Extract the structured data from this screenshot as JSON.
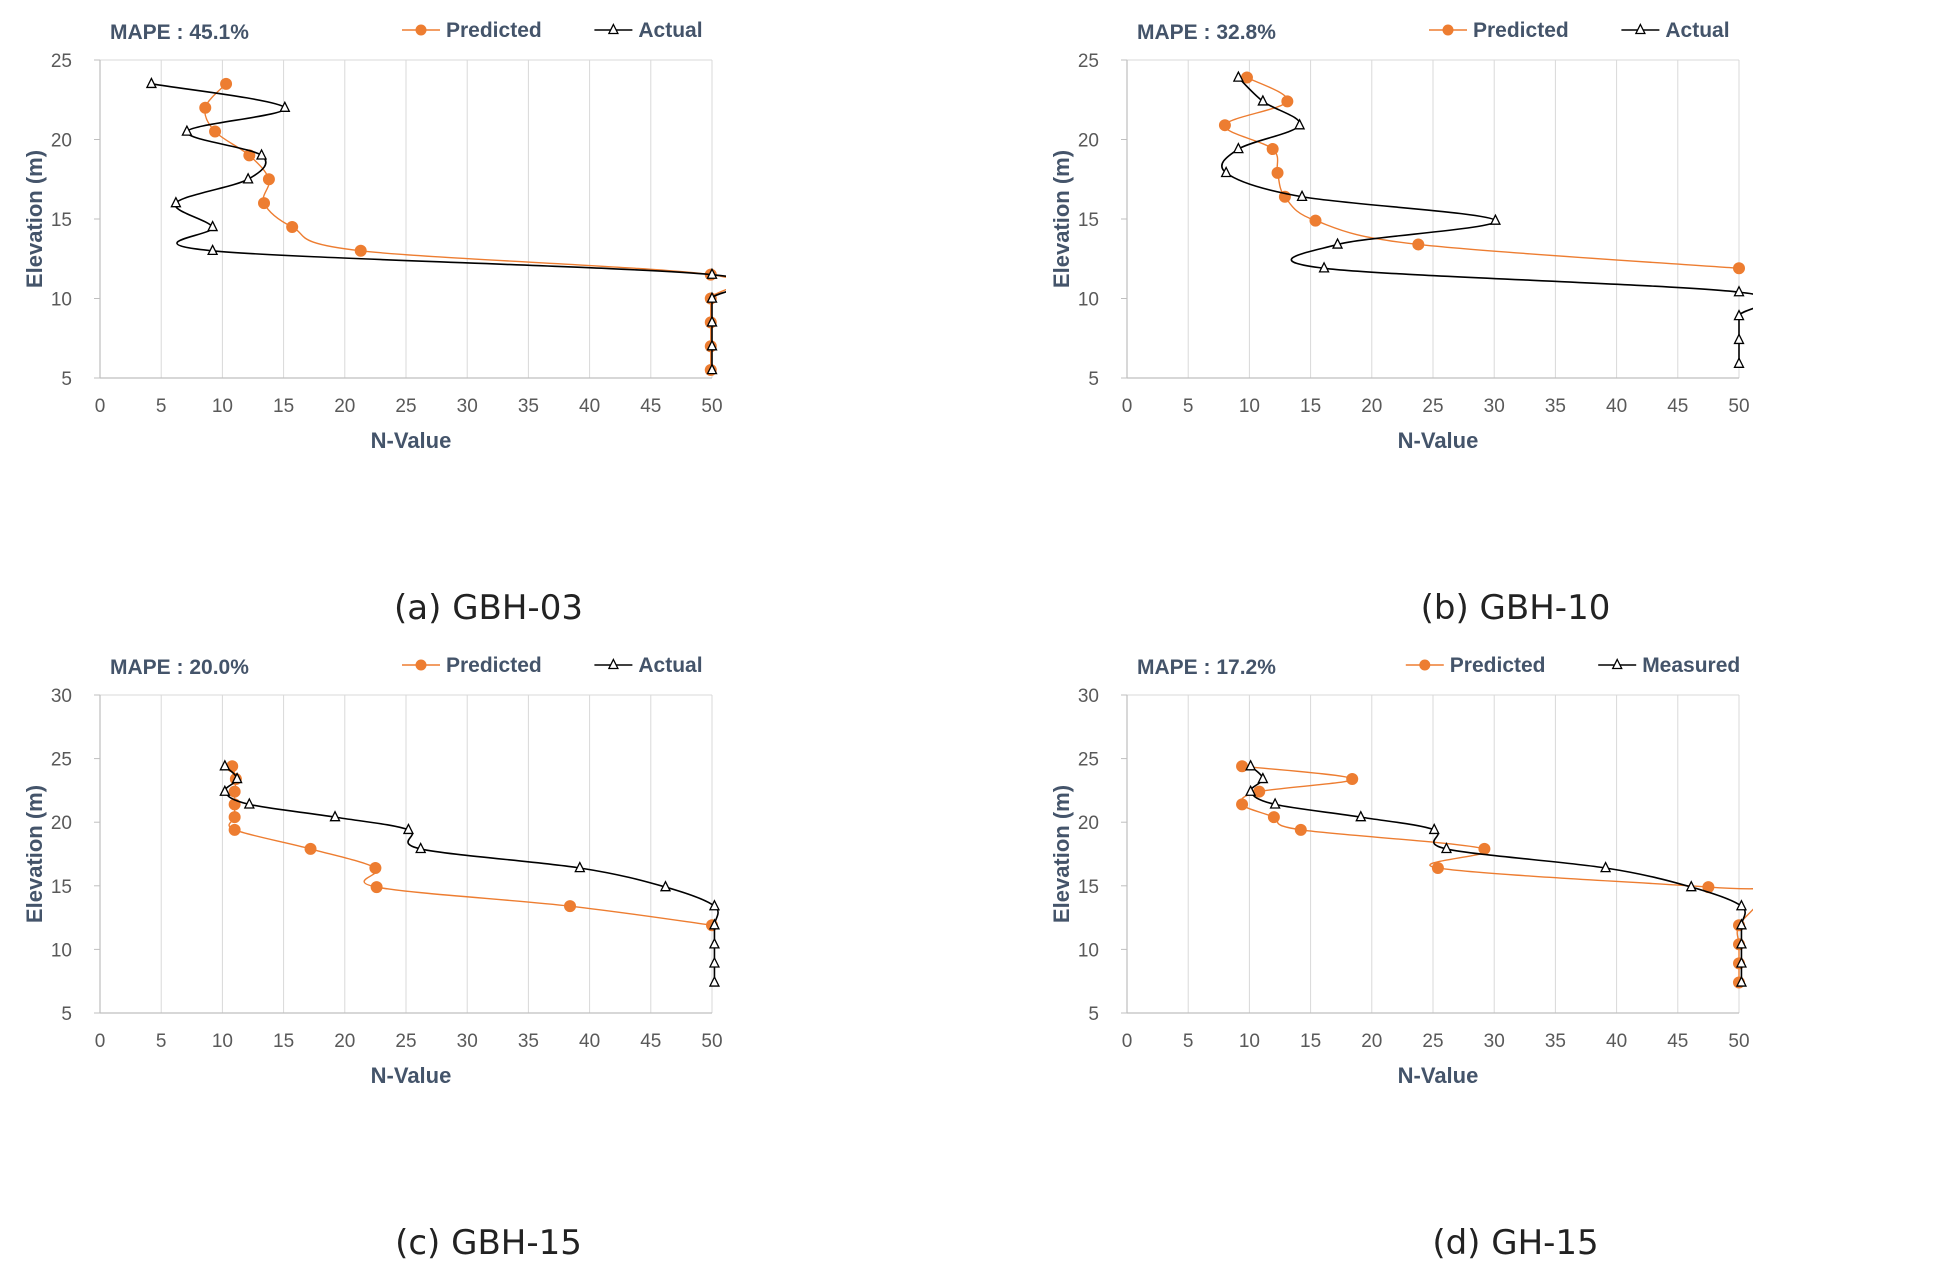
{
  "figure_title": "",
  "chart_data": [
    {
      "type": "line",
      "caption": "(a) GBH-03",
      "annotation": "MAPE : 45.1%",
      "xlabel": "N-Value",
      "ylabel": "Elevation (m)",
      "xlim": [
        0,
        50
      ],
      "ylim": [
        5,
        25
      ],
      "xticks": [
        0,
        5,
        10,
        15,
        20,
        25,
        30,
        35,
        40,
        45,
        50
      ],
      "yticks": [
        5,
        10,
        15,
        20,
        25
      ],
      "series": [
        {
          "name": "Predicted",
          "color": "#ed7d31",
          "marker": "circle",
          "points": [
            [
              10.3,
              23.5
            ],
            [
              8.6,
              22.0
            ],
            [
              9.4,
              20.5
            ],
            [
              12.2,
              19.0
            ],
            [
              13.8,
              17.5
            ],
            [
              13.4,
              16.0
            ],
            [
              15.7,
              14.5
            ],
            [
              21.3,
              13.0
            ],
            [
              49.9,
              11.5
            ],
            [
              49.9,
              10.0
            ],
            [
              49.9,
              8.5
            ],
            [
              49.9,
              7.0
            ],
            [
              49.9,
              5.5
            ]
          ]
        },
        {
          "name": "Actual",
          "color": "#000000",
          "marker": "triangle",
          "points": [
            [
              4.2,
              23.5
            ],
            [
              15.1,
              22.0
            ],
            [
              7.1,
              20.5
            ],
            [
              13.2,
              19.0
            ],
            [
              12.1,
              17.5
            ],
            [
              6.2,
              16.0
            ],
            [
              9.2,
              14.5
            ],
            [
              9.2,
              13.0
            ],
            [
              50,
              11.5
            ],
            [
              50,
              10.0
            ],
            [
              50,
              8.5
            ],
            [
              50,
              7.0
            ],
            [
              50,
              5.5
            ]
          ]
        }
      ]
    },
    {
      "type": "line",
      "caption": "(b) GBH-10",
      "annotation": "MAPE : 32.8%",
      "xlabel": "N-Value",
      "ylabel": "Elevation (m)",
      "xlim": [
        0,
        50
      ],
      "ylim": [
        5,
        25
      ],
      "xticks": [
        0,
        5,
        10,
        15,
        20,
        25,
        30,
        35,
        40,
        45,
        50
      ],
      "yticks": [
        5,
        10,
        15,
        20,
        25
      ],
      "series": [
        {
          "name": "Predicted",
          "color": "#ed7d31",
          "marker": "circle",
          "points": [
            [
              9.8,
              23.9
            ],
            [
              13.1,
              22.4
            ],
            [
              8.0,
              20.9
            ],
            [
              11.9,
              19.4
            ],
            [
              12.3,
              17.9
            ],
            [
              12.9,
              16.4
            ],
            [
              15.4,
              14.9
            ],
            [
              23.8,
              13.4
            ],
            [
              50,
              11.9
            ]
          ]
        },
        {
          "name": "Actual",
          "color": "#000000",
          "marker": "triangle",
          "points": [
            [
              9.1,
              23.9
            ],
            [
              11.1,
              22.4
            ],
            [
              14.1,
              20.9
            ],
            [
              9.1,
              19.4
            ],
            [
              8.1,
              17.9
            ],
            [
              14.3,
              16.4
            ],
            [
              30.1,
              14.9
            ],
            [
              17.2,
              13.4
            ],
            [
              16.1,
              11.9
            ],
            [
              50,
              10.4
            ],
            [
              50,
              8.9
            ],
            [
              50,
              7.4
            ],
            [
              50,
              5.9
            ]
          ]
        }
      ]
    },
    {
      "type": "line",
      "caption": "(c) GBH-15",
      "annotation": "MAPE : 20.0%",
      "xlabel": "N-Value",
      "ylabel": "Elevation (m)",
      "xlim": [
        0,
        50
      ],
      "ylim": [
        5,
        30
      ],
      "xticks": [
        0,
        5,
        10,
        15,
        20,
        25,
        30,
        35,
        40,
        45,
        50
      ],
      "yticks": [
        5,
        10,
        15,
        20,
        25,
        30
      ],
      "series": [
        {
          "name": "Predicted",
          "color": "#ed7d31",
          "marker": "circle",
          "points": [
            [
              10.8,
              24.4
            ],
            [
              11.1,
              23.4
            ],
            [
              11.0,
              22.4
            ],
            [
              11.0,
              21.4
            ],
            [
              11.0,
              20.4
            ],
            [
              11.0,
              19.4
            ],
            [
              17.2,
              17.9
            ],
            [
              22.5,
              16.4
            ],
            [
              22.6,
              14.9
            ],
            [
              38.4,
              13.4
            ],
            [
              50,
              11.9
            ]
          ]
        },
        {
          "name": "Actual",
          "color": "#000000",
          "marker": "triangle",
          "points": [
            [
              10.2,
              24.4
            ],
            [
              11.2,
              23.4
            ],
            [
              10.2,
              22.4
            ],
            [
              12.2,
              21.4
            ],
            [
              19.2,
              20.4
            ],
            [
              25.2,
              19.4
            ],
            [
              26.2,
              17.9
            ],
            [
              39.2,
              16.4
            ],
            [
              46.2,
              14.9
            ],
            [
              50.2,
              13.4
            ],
            [
              50.2,
              11.9
            ],
            [
              50.2,
              10.4
            ],
            [
              50.2,
              8.9
            ],
            [
              50.2,
              7.4
            ]
          ]
        }
      ]
    },
    {
      "type": "line",
      "caption": "(d) GH-15",
      "annotation": "MAPE : 17.2%",
      "xlabel": "N-Value",
      "ylabel": "Elevation (m)",
      "xlim": [
        0,
        50
      ],
      "ylim": [
        5,
        30
      ],
      "xticks": [
        0,
        5,
        10,
        15,
        20,
        25,
        30,
        35,
        40,
        45,
        50
      ],
      "yticks": [
        5,
        10,
        15,
        20,
        25,
        30
      ],
      "series": [
        {
          "name": "Predicted",
          "color": "#ed7d31",
          "marker": "circle",
          "points": [
            [
              9.4,
              24.4
            ],
            [
              18.4,
              23.4
            ],
            [
              10.8,
              22.4
            ],
            [
              9.4,
              21.4
            ],
            [
              12.0,
              20.4
            ],
            [
              14.2,
              19.4
            ],
            [
              29.2,
              17.9
            ],
            [
              25.4,
              16.4
            ],
            [
              47.5,
              14.9
            ],
            [
              52,
              14.5
            ],
            [
              50.0,
              11.9
            ],
            [
              50.0,
              10.4
            ],
            [
              50.0,
              8.9
            ],
            [
              50.0,
              7.4
            ]
          ]
        },
        {
          "name": "Measured",
          "color": "#000000",
          "marker": "triangle",
          "points": [
            [
              10.1,
              24.4
            ],
            [
              11.1,
              23.4
            ],
            [
              10.1,
              22.4
            ],
            [
              12.1,
              21.4
            ],
            [
              19.1,
              20.4
            ],
            [
              25.1,
              19.4
            ],
            [
              26.1,
              17.9
            ],
            [
              39.1,
              16.4
            ],
            [
              46.1,
              14.9
            ],
            [
              50.2,
              13.4
            ],
            [
              50.2,
              11.9
            ],
            [
              50.2,
              10.4
            ],
            [
              50.2,
              8.9
            ],
            [
              50.2,
              7.4
            ]
          ]
        }
      ]
    }
  ]
}
